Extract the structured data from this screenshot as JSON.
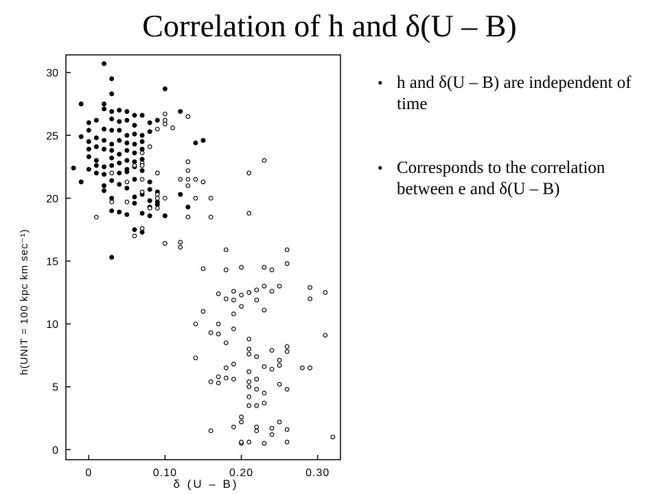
{
  "slide": {
    "title": "Correlation of  h  and  δ(U – B)",
    "bullets": [
      "h and δ(U – B) are independent of time",
      "Corresponds to the correlation between e and δ(U – B)"
    ]
  },
  "chart_data": {
    "type": "scatter",
    "xlabel": "δ (U – B)",
    "ylabel": "h(UNIT = 100 kpc km sec⁻¹)",
    "xlim": [
      -0.03,
      0.33
    ],
    "ylim": [
      -0.8,
      31.4
    ],
    "x_ticks": [
      0,
      0.1,
      0.2,
      0.3
    ],
    "x_tick_labels": [
      "0",
      "0.10",
      "0.20",
      "0.30"
    ],
    "y_ticks": [
      0,
      5,
      10,
      15,
      20,
      25,
      30
    ],
    "y_tick_labels": [
      "0",
      "5",
      "10",
      "15",
      "20",
      "25",
      "30"
    ],
    "grid": false,
    "series": [
      {
        "marker": "filled-circle",
        "color": "#000000",
        "points": [
          [
            0.02,
            30.7
          ],
          [
            0.03,
            29.5
          ],
          [
            0.03,
            28.3
          ],
          [
            0.1,
            28.7
          ],
          [
            -0.01,
            27.5
          ],
          [
            0.02,
            27.5
          ],
          [
            0.02,
            27.1
          ],
          [
            0.03,
            26.9
          ],
          [
            0.04,
            27.0
          ],
          [
            0.05,
            26.9
          ],
          [
            0.06,
            26.6
          ],
          [
            0.07,
            26.6
          ],
          [
            0.12,
            26.9
          ],
          [
            0.0,
            26.0
          ],
          [
            0.01,
            26.2
          ],
          [
            0.03,
            26.3
          ],
          [
            0.04,
            26.1
          ],
          [
            0.05,
            26.2
          ],
          [
            0.06,
            25.8
          ],
          [
            0.08,
            26.0
          ],
          [
            0.09,
            26.2
          ],
          [
            0.0,
            25.4
          ],
          [
            0.02,
            25.5
          ],
          [
            0.03,
            25.4
          ],
          [
            0.04,
            25.4
          ],
          [
            0.05,
            25.0
          ],
          [
            0.06,
            25.1
          ],
          [
            0.07,
            25.0
          ],
          [
            0.08,
            25.3
          ],
          [
            -0.01,
            24.9
          ],
          [
            0.0,
            24.5
          ],
          [
            0.01,
            24.8
          ],
          [
            0.02,
            24.6
          ],
          [
            0.03,
            24.3
          ],
          [
            0.04,
            24.6
          ],
          [
            0.05,
            24.4
          ],
          [
            0.06,
            24.3
          ],
          [
            0.07,
            24.5
          ],
          [
            0.14,
            24.4
          ],
          [
            0.15,
            24.6
          ],
          [
            0.0,
            23.9
          ],
          [
            0.01,
            24.1
          ],
          [
            0.02,
            23.9
          ],
          [
            0.03,
            23.8
          ],
          [
            0.04,
            23.5
          ],
          [
            0.05,
            23.8
          ],
          [
            0.06,
            23.6
          ],
          [
            0.07,
            23.9
          ],
          [
            0.0,
            23.3
          ],
          [
            0.01,
            23.0
          ],
          [
            0.03,
            23.2
          ],
          [
            0.04,
            22.8
          ],
          [
            0.05,
            23.0
          ],
          [
            0.06,
            22.9
          ],
          [
            0.07,
            23.1
          ],
          [
            -0.02,
            22.4
          ],
          [
            0.0,
            22.3
          ],
          [
            0.01,
            22.6
          ],
          [
            0.02,
            22.5
          ],
          [
            0.03,
            22.6
          ],
          [
            0.05,
            22.3
          ],
          [
            0.06,
            22.5
          ],
          [
            0.07,
            22.2
          ],
          [
            0.01,
            22.0
          ],
          [
            0.02,
            21.9
          ],
          [
            0.04,
            22.0
          ],
          [
            0.05,
            22.1
          ],
          [
            0.03,
            21.4
          ],
          [
            0.04,
            21.1
          ],
          [
            0.06,
            21.5
          ],
          [
            0.08,
            21.3
          ],
          [
            -0.01,
            21.3
          ],
          [
            0.02,
            21.0
          ],
          [
            0.02,
            20.6
          ],
          [
            0.05,
            20.8
          ],
          [
            0.08,
            20.7
          ],
          [
            0.09,
            20.5
          ],
          [
            0.03,
            20.0
          ],
          [
            0.06,
            20.1
          ],
          [
            0.07,
            20.3
          ],
          [
            0.08,
            19.8
          ],
          [
            0.09,
            19.7
          ],
          [
            0.12,
            20.3
          ],
          [
            0.06,
            19.6
          ],
          [
            0.08,
            19.3
          ],
          [
            0.09,
            19.5
          ],
          [
            0.13,
            19.3
          ],
          [
            0.03,
            19.0
          ],
          [
            0.04,
            18.9
          ],
          [
            0.05,
            18.7
          ],
          [
            0.07,
            18.8
          ],
          [
            0.08,
            18.6
          ],
          [
            0.1,
            18.6
          ],
          [
            0.06,
            17.5
          ],
          [
            0.07,
            17.3
          ],
          [
            0.03,
            15.3
          ]
        ]
      },
      {
        "marker": "open-circle",
        "color": "#000000",
        "points": [
          [
            0.1,
            26.7
          ],
          [
            0.1,
            26.2
          ],
          [
            0.1,
            25.9
          ],
          [
            0.11,
            25.6
          ],
          [
            0.13,
            26.5
          ],
          [
            0.09,
            25.5
          ],
          [
            0.08,
            24.1
          ],
          [
            0.07,
            23.6
          ],
          [
            0.07,
            22.8
          ],
          [
            0.06,
            22.6
          ],
          [
            0.07,
            22.6
          ],
          [
            0.13,
            22.9
          ],
          [
            0.13,
            22.2
          ],
          [
            0.21,
            22.0
          ],
          [
            0.23,
            23.0
          ],
          [
            0.03,
            22.0
          ],
          [
            0.05,
            21.3
          ],
          [
            0.12,
            21.5
          ],
          [
            0.13,
            21.5
          ],
          [
            0.13,
            21.0
          ],
          [
            0.14,
            21.5
          ],
          [
            0.15,
            21.3
          ],
          [
            0.09,
            22.0
          ],
          [
            0.07,
            21.5
          ],
          [
            0.07,
            20.5
          ],
          [
            0.09,
            20.3
          ],
          [
            0.09,
            20.0
          ],
          [
            0.1,
            20.0
          ],
          [
            0.14,
            20.0
          ],
          [
            0.16,
            20.0
          ],
          [
            0.03,
            19.7
          ],
          [
            0.05,
            19.7
          ],
          [
            0.08,
            19.2
          ],
          [
            0.09,
            19.2
          ],
          [
            0.01,
            18.5
          ],
          [
            0.13,
            18.5
          ],
          [
            0.16,
            18.5
          ],
          [
            0.21,
            18.8
          ],
          [
            0.06,
            17.0
          ],
          [
            0.07,
            17.6
          ],
          [
            0.1,
            16.4
          ],
          [
            0.12,
            16.5
          ],
          [
            0.12,
            16.1
          ],
          [
            0.18,
            15.9
          ],
          [
            0.26,
            15.9
          ],
          [
            0.15,
            14.4
          ],
          [
            0.18,
            14.3
          ],
          [
            0.2,
            14.5
          ],
          [
            0.23,
            14.5
          ],
          [
            0.24,
            14.3
          ],
          [
            0.26,
            14.8
          ],
          [
            0.17,
            12.4
          ],
          [
            0.18,
            12.0
          ],
          [
            0.19,
            12.6
          ],
          [
            0.19,
            11.9
          ],
          [
            0.2,
            12.3
          ],
          [
            0.2,
            11.4
          ],
          [
            0.21,
            12.5
          ],
          [
            0.22,
            12.7
          ],
          [
            0.22,
            11.9
          ],
          [
            0.23,
            13.0
          ],
          [
            0.23,
            11.1
          ],
          [
            0.24,
            12.6
          ],
          [
            0.25,
            13.0
          ],
          [
            0.29,
            12.9
          ],
          [
            0.29,
            12.0
          ],
          [
            0.31,
            12.5
          ],
          [
            0.15,
            11.0
          ],
          [
            0.16,
            9.3
          ],
          [
            0.14,
            10.0
          ],
          [
            0.17,
            10.0
          ],
          [
            0.18,
            8.5
          ],
          [
            0.17,
            9.2
          ],
          [
            0.19,
            9.6
          ],
          [
            0.19,
            10.8
          ],
          [
            0.21,
            8.8
          ],
          [
            0.21,
            8.0
          ],
          [
            0.21,
            7.6
          ],
          [
            0.22,
            7.4
          ],
          [
            0.24,
            7.9
          ],
          [
            0.26,
            8.2
          ],
          [
            0.26,
            7.8
          ],
          [
            0.31,
            9.1
          ],
          [
            0.14,
            7.3
          ],
          [
            0.18,
            6.5
          ],
          [
            0.18,
            5.7
          ],
          [
            0.17,
            5.3
          ],
          [
            0.17,
            5.8
          ],
          [
            0.16,
            5.4
          ],
          [
            0.19,
            5.6
          ],
          [
            0.19,
            6.8
          ],
          [
            0.21,
            6.2
          ],
          [
            0.21,
            5.4
          ],
          [
            0.21,
            5.0
          ],
          [
            0.22,
            4.8
          ],
          [
            0.22,
            5.6
          ],
          [
            0.23,
            6.6
          ],
          [
            0.24,
            6.4
          ],
          [
            0.25,
            6.7
          ],
          [
            0.25,
            7.1
          ],
          [
            0.25,
            5.2
          ],
          [
            0.26,
            4.8
          ],
          [
            0.28,
            6.5
          ],
          [
            0.29,
            6.5
          ],
          [
            0.21,
            4.2
          ],
          [
            0.21,
            3.5
          ],
          [
            0.22,
            3.5
          ],
          [
            0.23,
            3.7
          ],
          [
            0.23,
            4.5
          ],
          [
            0.2,
            2.6
          ],
          [
            0.2,
            2.2
          ],
          [
            0.19,
            1.8
          ],
          [
            0.2,
            0.5
          ],
          [
            0.2,
            0.6
          ],
          [
            0.21,
            0.6
          ],
          [
            0.22,
            1.5
          ],
          [
            0.22,
            1.8
          ],
          [
            0.23,
            0.5
          ],
          [
            0.24,
            1.2
          ],
          [
            0.24,
            1.7
          ],
          [
            0.25,
            2.2
          ],
          [
            0.26,
            1.6
          ],
          [
            0.26,
            0.6
          ],
          [
            0.16,
            1.5
          ],
          [
            0.32,
            1.0
          ]
        ]
      }
    ]
  }
}
